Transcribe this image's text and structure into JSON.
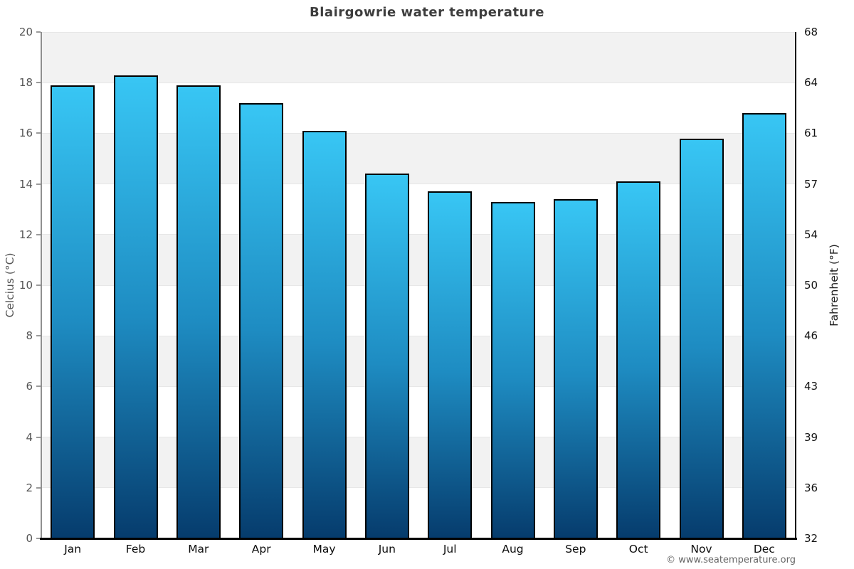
{
  "title": "Blairgowrie water temperature",
  "footer": "© www.seatemperature.org",
  "chart_data": {
    "type": "bar",
    "title": "Blairgowrie water temperature",
    "categories": [
      "Jan",
      "Feb",
      "Mar",
      "Apr",
      "May",
      "Jun",
      "Jul",
      "Aug",
      "Sep",
      "Oct",
      "Nov",
      "Dec"
    ],
    "values": [
      17.9,
      18.3,
      17.9,
      17.2,
      16.1,
      14.4,
      13.7,
      13.3,
      13.4,
      14.1,
      15.8,
      16.8
    ],
    "series_name": "Water temperature (°C)",
    "xlabel": "",
    "ylabel_left": "Celcius (°C)",
    "ylabel_right": "Fahrenheit (°F)",
    "ylim_left": [
      0,
      20
    ],
    "ylim_right": [
      32,
      68
    ],
    "yticks_left": [
      20,
      18,
      16,
      14,
      12,
      10,
      8,
      6,
      4,
      2,
      0
    ],
    "yticks_right": [
      68,
      64,
      61,
      57,
      54,
      50,
      46,
      43,
      39,
      36,
      32
    ],
    "legend": "none",
    "grid": "alternating horizontal bands, 2°C each",
    "band_color": "#f2f2f2",
    "bar_gradient_top": "#38c6f4",
    "bar_gradient_mid": "#1e8cc2",
    "bar_gradient_bottom": "#063c6d",
    "bar_border_color": "#000000"
  }
}
